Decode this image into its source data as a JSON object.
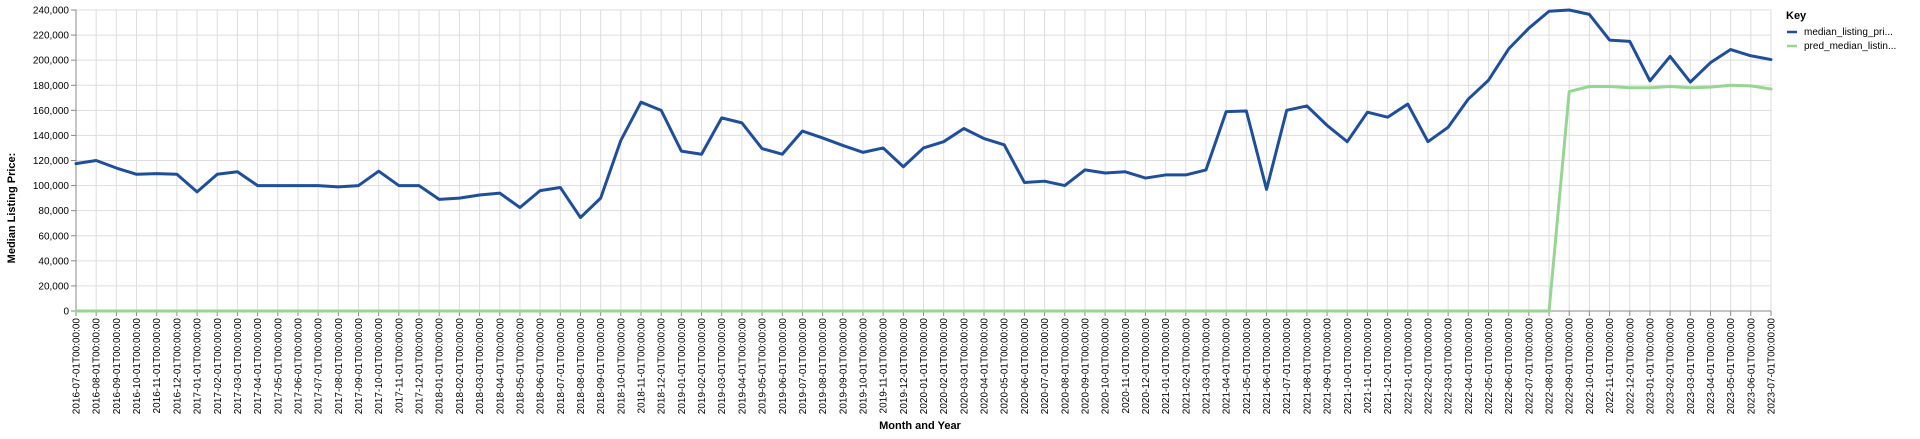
{
  "chart_data": {
    "type": "line",
    "xlabel": "Month and Year",
    "ylabel": "Median Listing Price:",
    "ylim": [
      0,
      240000
    ],
    "yticks": [
      "0",
      "20,000",
      "40,000",
      "60,000",
      "80,000",
      "100,000",
      "120,000",
      "140,000",
      "160,000",
      "180,000",
      "200,000",
      "220,000",
      "240,000"
    ],
    "grid": true,
    "legend": {
      "title": "Key",
      "placement": "top-right",
      "entries": [
        "median_listing_pri...",
        "pred_median_listin..."
      ]
    },
    "x": [
      "2016-07-01T00:00:00",
      "2016-08-01T00:00:00",
      "2016-09-01T00:00:00",
      "2016-10-01T00:00:00",
      "2016-11-01T00:00:00",
      "2016-12-01T00:00:00",
      "2017-01-01T00:00:00",
      "2017-02-01T00:00:00",
      "2017-03-01T00:00:00",
      "2017-04-01T00:00:00",
      "2017-05-01T00:00:00",
      "2017-06-01T00:00:00",
      "2017-07-01T00:00:00",
      "2017-08-01T00:00:00",
      "2017-09-01T00:00:00",
      "2017-10-01T00:00:00",
      "2017-11-01T00:00:00",
      "2017-12-01T00:00:00",
      "2018-01-01T00:00:00",
      "2018-02-01T00:00:00",
      "2018-03-01T00:00:00",
      "2018-04-01T00:00:00",
      "2018-05-01T00:00:00",
      "2018-06-01T00:00:00",
      "2018-07-01T00:00:00",
      "2018-08-01T00:00:00",
      "2018-09-01T00:00:00",
      "2018-10-01T00:00:00",
      "2018-11-01T00:00:00",
      "2018-12-01T00:00:00",
      "2019-01-01T00:00:00",
      "2019-02-01T00:00:00",
      "2019-03-01T00:00:00",
      "2019-04-01T00:00:00",
      "2019-05-01T00:00:00",
      "2019-06-01T00:00:00",
      "2019-07-01T00:00:00",
      "2019-08-01T00:00:00",
      "2019-09-01T00:00:00",
      "2019-10-01T00:00:00",
      "2019-11-01T00:00:00",
      "2019-12-01T00:00:00",
      "2020-01-01T00:00:00",
      "2020-02-01T00:00:00",
      "2020-03-01T00:00:00",
      "2020-04-01T00:00:00",
      "2020-05-01T00:00:00",
      "2020-06-01T00:00:00",
      "2020-07-01T00:00:00",
      "2020-08-01T00:00:00",
      "2020-09-01T00:00:00",
      "2020-10-01T00:00:00",
      "2020-11-01T00:00:00",
      "2020-12-01T00:00:00",
      "2021-01-01T00:00:00",
      "2021-02-01T00:00:00",
      "2021-03-01T00:00:00",
      "2021-04-01T00:00:00",
      "2021-05-01T00:00:00",
      "2021-06-01T00:00:00",
      "2021-07-01T00:00:00",
      "2021-08-01T00:00:00",
      "2021-09-01T00:00:00",
      "2021-10-01T00:00:00",
      "2021-11-01T00:00:00",
      "2021-12-01T00:00:00",
      "2022-01-01T00:00:00",
      "2022-02-01T00:00:00",
      "2022-03-01T00:00:00",
      "2022-04-01T00:00:00",
      "2022-05-01T00:00:00",
      "2022-06-01T00:00:00",
      "2022-07-01T00:00:00",
      "2022-08-01T00:00:00",
      "2022-09-01T00:00:00",
      "2022-10-01T00:00:00",
      "2022-11-01T00:00:00",
      "2022-12-01T00:00:00",
      "2023-01-01T00:00:00",
      "2023-02-01T00:00:00",
      "2023-03-01T00:00:00",
      "2023-04-01T00:00:00",
      "2023-05-01T00:00:00",
      "2023-06-01T00:00:00",
      "2023-07-01T00:00:00"
    ],
    "series": [
      {
        "name": "median_listing_pri...",
        "color": "#1f4e9a",
        "values": [
          117500,
          120000,
          114000,
          109000,
          109500,
          109000,
          95000,
          109000,
          111000,
          100000,
          100000,
          100000,
          100000,
          99000,
          100000,
          111500,
          100000,
          100000,
          89000,
          90000,
          92500,
          94000,
          82500,
          96000,
          98500,
          74500,
          90000,
          136000,
          166500,
          160000,
          127500,
          125000,
          154000,
          150000,
          129500,
          125000,
          143500,
          138000,
          132000,
          126500,
          130000,
          115000,
          130000,
          135000,
          145500,
          137500,
          132500,
          102500,
          103500,
          100000,
          112500,
          110000,
          111000,
          106000,
          108500,
          108500,
          112500,
          159000,
          159500,
          97000,
          160000,
          163500,
          148000,
          135000,
          158500,
          154500,
          165000,
          135000,
          146500,
          169000,
          184000,
          209000,
          225500,
          239000,
          240000,
          236500,
          216000,
          215000,
          183500,
          203000,
          182500,
          198000,
          208500,
          203500,
          200500
        ]
      },
      {
        "name": "pred_median_listin...",
        "color": "#98d594",
        "values": [
          0,
          0,
          0,
          0,
          0,
          0,
          0,
          0,
          0,
          0,
          0,
          0,
          0,
          0,
          0,
          0,
          0,
          0,
          0,
          0,
          0,
          0,
          0,
          0,
          0,
          0,
          0,
          0,
          0,
          0,
          0,
          0,
          0,
          0,
          0,
          0,
          0,
          0,
          0,
          0,
          0,
          0,
          0,
          0,
          0,
          0,
          0,
          0,
          0,
          0,
          0,
          0,
          0,
          0,
          0,
          0,
          0,
          0,
          0,
          0,
          0,
          0,
          0,
          0,
          0,
          0,
          0,
          0,
          0,
          0,
          0,
          0,
          0,
          0,
          175000,
          179000,
          179000,
          178000,
          178000,
          179000,
          178000,
          178500,
          180000,
          179500,
          177000
        ]
      }
    ]
  }
}
